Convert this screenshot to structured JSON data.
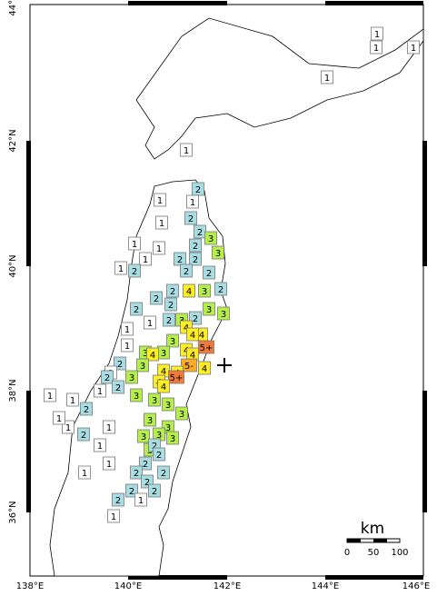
{
  "map": {
    "lat_labels": [
      "44°N",
      "42°N",
      "40°N",
      "38°N",
      "36°N"
    ],
    "lon_labels": [
      "138°E",
      "140°E",
      "142°E",
      "144°E",
      "146°E"
    ],
    "scale": {
      "unit": "km",
      "ticks": [
        "0",
        "50",
        "100"
      ]
    },
    "stations": [
      "1",
      "1",
      "1",
      "1",
      "1",
      "2",
      "1",
      "1",
      "2",
      "1",
      "2",
      "3",
      "1",
      "1",
      "2",
      "3",
      "1",
      "2",
      "2",
      "2",
      "1",
      "2",
      "2",
      "2",
      "4",
      "2",
      "2",
      "2",
      "3",
      "2",
      "1",
      "3",
      "3",
      "3",
      "2",
      "2",
      "1",
      "4",
      "4",
      "4",
      "5+",
      "3",
      "3",
      "4",
      "3",
      "1",
      "4",
      "4",
      "5-",
      "4",
      "4",
      "4",
      "3",
      "3",
      "2",
      "1",
      "2",
      "2",
      "3",
      "4",
      "5+",
      "4",
      "1",
      "2",
      "1",
      "3",
      "3",
      "3",
      "3",
      "3",
      "3",
      "3",
      "3",
      "3",
      "2",
      "2",
      "2",
      "2",
      "2",
      "2",
      "2",
      "2",
      "2",
      "1",
      "1",
      "1",
      "1",
      "1",
      "1",
      "1",
      "1",
      "1",
      "2"
    ]
  }
}
